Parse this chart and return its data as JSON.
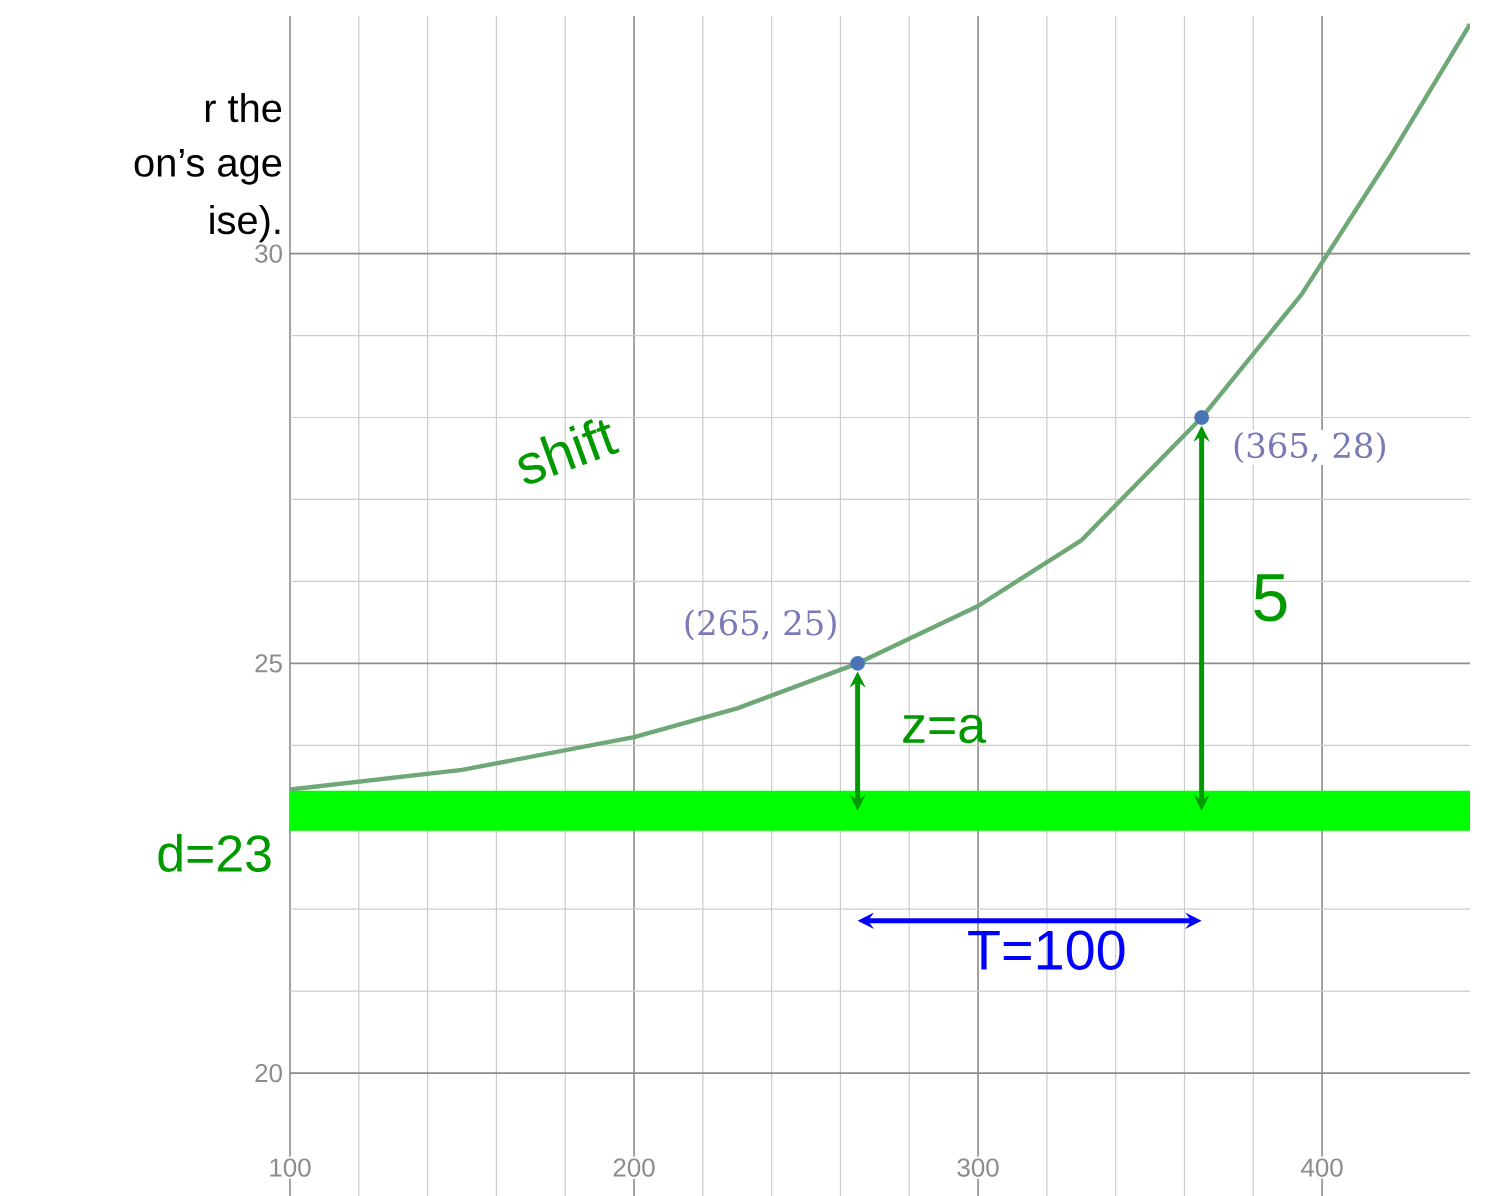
{
  "chart_data": {
    "type": "line",
    "x": [
      100,
      150,
      200,
      230,
      265,
      300,
      330,
      365,
      394,
      420,
      443
    ],
    "series": [
      {
        "color": "#6fa877",
        "values": [
          23.46,
          23.7,
          24.1,
          24.45,
          25,
          25.7,
          26.5,
          28,
          29.5,
          31.2,
          32.8
        ]
      },
      {
        "type": "scatter",
        "color": "#4a74b4",
        "x": [
          265,
          365
        ],
        "values": [
          25,
          28
        ]
      }
    ],
    "xlim": [
      100,
      443
    ],
    "ylim": [
      18.5,
      32.9
    ],
    "xticks": [
      100,
      200,
      300,
      400
    ],
    "yticks": [
      20,
      25,
      30
    ],
    "grid": true,
    "ref_lines": [
      {
        "axis": "y",
        "value": 23.2,
        "label": "d=23",
        "color": "#00ff00"
      }
    ],
    "annotations": [
      "r the",
      "on’s age",
      "ise).",
      {
        "text": "(265, 25)",
        "x": 265,
        "y": 25
      },
      {
        "text": "(365, 28)",
        "x": 365,
        "y": 28
      },
      "shift",
      "z=a",
      "5",
      "T=100"
    ]
  }
}
